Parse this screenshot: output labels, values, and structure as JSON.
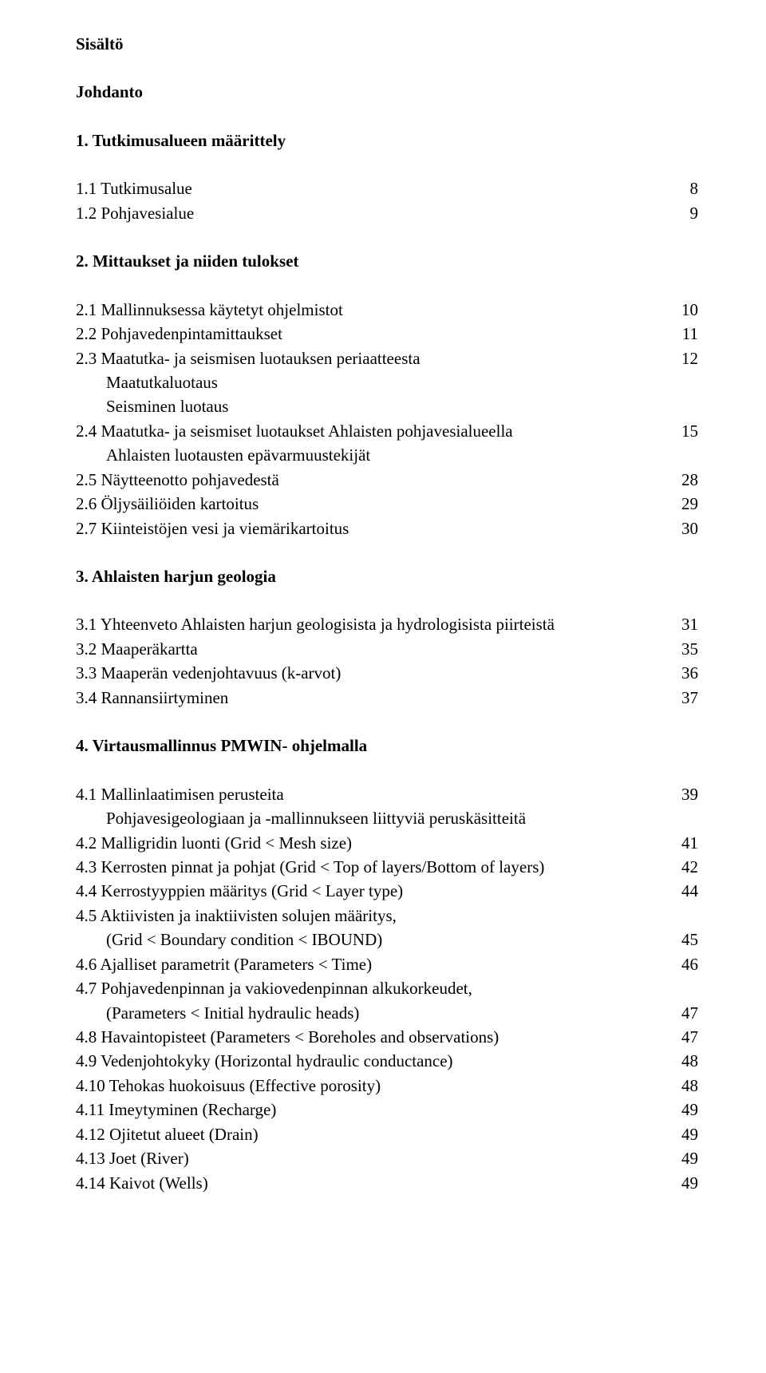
{
  "title": "Sisältö",
  "intro": "Johdanto",
  "sections": [
    {
      "heading": "1. Tutkimusalueen määrittely",
      "entries": [
        {
          "label": "1.1 Tutkimusalue",
          "page": "8",
          "indent": false
        },
        {
          "label": "1.2 Pohjavesialue",
          "page": "9",
          "indent": false
        }
      ]
    },
    {
      "heading": "2. Mittaukset  ja niiden tulokset",
      "entries": [
        {
          "label": "2.1 Mallinnuksessa käytetyt ohjelmistot",
          "page": "10",
          "indent": false
        },
        {
          "label": "2.2 Pohjavedenpintamittaukset",
          "page": "11",
          "indent": false
        },
        {
          "label": "2.3 Maatutka- ja seismisen luotauksen periaatteesta",
          "page": "12",
          "indent": false
        },
        {
          "label": "Maatutkaluotaus",
          "page": "",
          "indent": true
        },
        {
          "label": "Seisminen luotaus",
          "page": "",
          "indent": true
        },
        {
          "label": "2.4 Maatutka- ja seismiset luotaukset Ahlaisten pohjavesialueella",
          "page": "15",
          "indent": false
        },
        {
          "label": "Ahlaisten luotausten epävarmuustekijät",
          "page": "",
          "indent": true
        },
        {
          "label": "2.5 Näytteenotto pohjavedestä",
          "page": "28",
          "indent": false
        },
        {
          "label": "2.6 Öljysäiliöiden kartoitus",
          "page": "29",
          "indent": false
        },
        {
          "label": "2.7 Kiinteistöjen vesi ja viemärikartoitus",
          "page": "30",
          "indent": false
        }
      ]
    },
    {
      "heading": "3. Ahlaisten harjun  geologia",
      "entries": [
        {
          "label": "3.1 Yhteenveto Ahlaisten harjun geologisista ja hydrologisista piirteistä",
          "page": "31",
          "indent": false
        },
        {
          "label": "3.2 Maaperäkartta",
          "page": "35",
          "indent": false
        },
        {
          "label": "3.3 Maaperän vedenjohtavuus (k-arvot)",
          "page": "36",
          "indent": false
        },
        {
          "label": "3.4 Rannansiirtyminen",
          "page": "37",
          "indent": false
        }
      ]
    },
    {
      "heading": "4. Virtausmallinnus PMWIN- ohjelmalla",
      "entries": [
        {
          "label": "4.1 Mallinlaatimisen perusteita",
          "page": "39",
          "indent": false
        },
        {
          "label": "Pohjavesigeologiaan ja -mallinnukseen liittyviä peruskäsitteitä",
          "page": "",
          "indent": true
        },
        {
          "label": "4.2 Malligridin luonti (Grid < Mesh size)",
          "page": "41",
          "indent": false
        },
        {
          "label": "4.3 Kerrosten pinnat ja pohjat (Grid < Top of layers/Bottom of layers)",
          "page": "42",
          "indent": false
        },
        {
          "label": "4.4 Kerrostyyppien määritys (Grid < Layer type)",
          "page": "44",
          "indent": false
        },
        {
          "label": "4.5 Aktiivisten ja inaktiivisten solujen määritys,",
          "page": "",
          "indent": false
        },
        {
          "label": "(Grid < Boundary condition < IBOUND)",
          "page": "45",
          "indent": true
        },
        {
          "label": "4.6 Ajalliset parametrit (Parameters < Time)",
          "page": "46",
          "indent": false
        },
        {
          "label": "4.7 Pohjavedenpinnan ja vakiovedenpinnan alkukorkeudet,",
          "page": "",
          "indent": false
        },
        {
          "label": "(Parameters < Initial hydraulic heads)",
          "page": "47",
          "indent": true
        },
        {
          "label": "4.8 Havaintopisteet (Parameters < Boreholes and observations)",
          "page": "47",
          "indent": false
        },
        {
          "label": "4.9 Vedenjohtokyky (Horizontal hydraulic conductance)",
          "page": "48",
          "indent": false
        },
        {
          "label": "4.10 Tehokas huokoisuus (Effective porosity)",
          "page": "48",
          "indent": false
        },
        {
          "label": "4.11 Imeytyminen (Recharge)",
          "page": "49",
          "indent": false
        },
        {
          "label": "4.12 Ojitetut alueet (Drain)",
          "page": "49",
          "indent": false
        },
        {
          "label": "4.13 Joet (River)",
          "page": "49",
          "indent": false
        },
        {
          "label": "4.14 Kaivot (Wells)",
          "page": "49",
          "indent": false
        }
      ]
    }
  ]
}
